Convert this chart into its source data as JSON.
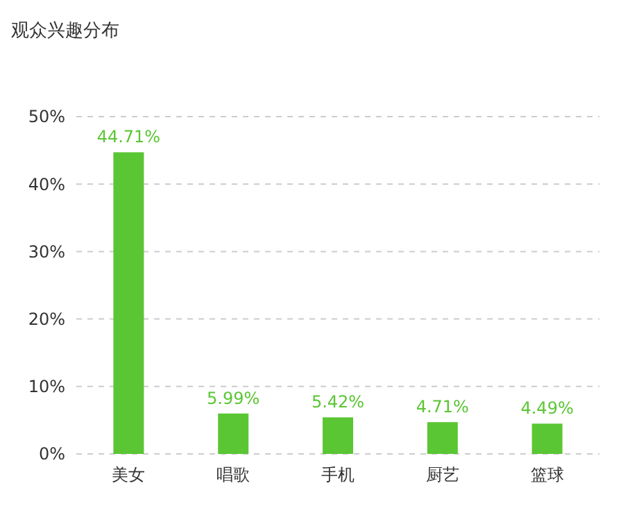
{
  "chart_data": {
    "type": "bar",
    "title": "观众兴趣分布",
    "categories": [
      "美女",
      "唱歌",
      "手机",
      "厨艺",
      "篮球"
    ],
    "values": [
      44.71,
      5.99,
      5.42,
      4.71,
      4.49
    ],
    "value_labels": [
      "44.71%",
      "5.99%",
      "5.42%",
      "4.71%",
      "4.49%"
    ],
    "color": "#5ac634",
    "ylim": [
      0,
      50
    ],
    "yticks": [
      {
        "value": 0,
        "label": "0%"
      },
      {
        "value": 10,
        "label": "10%"
      },
      {
        "value": 20,
        "label": "20%"
      },
      {
        "value": 30,
        "label": "30%"
      },
      {
        "value": 40,
        "label": "40%"
      },
      {
        "value": 50,
        "label": "50%"
      }
    ],
    "grid": "y"
  }
}
